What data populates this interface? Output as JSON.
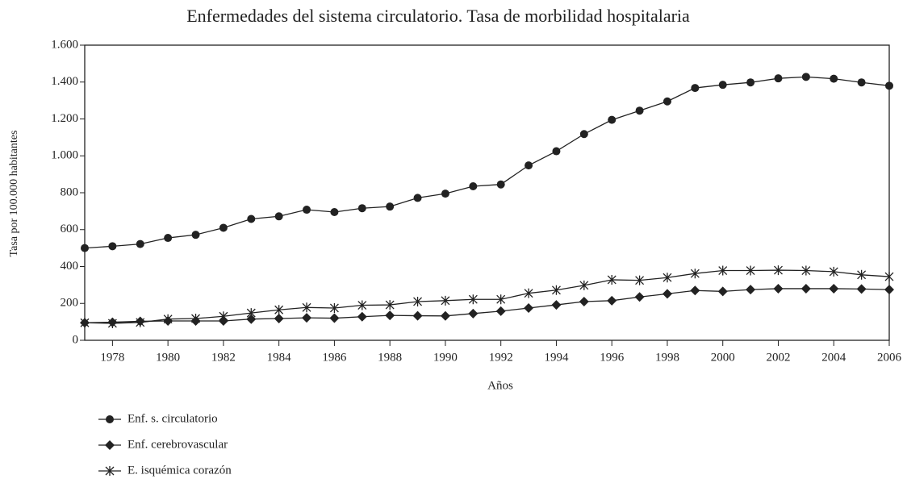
{
  "chart_data": {
    "type": "line",
    "title": "Enfermedades del sistema circulatorio. Tasa de morbilidad hospitalaria",
    "x_label": "Años",
    "y_label": "Tasa por 100.000 habitantes",
    "x": [
      1977,
      1978,
      1979,
      1980,
      1981,
      1982,
      1983,
      1984,
      1985,
      1986,
      1987,
      1988,
      1989,
      1990,
      1991,
      1992,
      1993,
      1994,
      1995,
      1996,
      1997,
      1998,
      1999,
      2000,
      2001,
      2002,
      2003,
      2004,
      2005,
      2006
    ],
    "series": [
      {
        "name": "Enf. s. circulatorio",
        "color": "#222222",
        "marker": "circle",
        "values": [
          500,
          510,
          522,
          555,
          572,
          610,
          658,
          672,
          708,
          695,
          716,
          725,
          772,
          795,
          835,
          845,
          948,
          1025,
          1118,
          1195,
          1245,
          1295,
          1368,
          1385,
          1398,
          1420,
          1428,
          1418,
          1398,
          1380
        ]
      },
      {
        "name": "Enf. cerebrovascular",
        "color": "#222222",
        "marker": "diamond",
        "values": [
          95,
          98,
          103,
          105,
          105,
          105,
          115,
          118,
          122,
          120,
          128,
          135,
          133,
          132,
          145,
          158,
          175,
          192,
          210,
          215,
          235,
          252,
          270,
          265,
          275,
          280,
          280,
          280,
          278,
          275
        ]
      },
      {
        "name": "E. isquémica corazón",
        "color": "#222222",
        "marker": "star",
        "values": [
          95,
          92,
          97,
          115,
          118,
          130,
          148,
          165,
          178,
          175,
          190,
          192,
          210,
          215,
          222,
          222,
          255,
          272,
          298,
          328,
          325,
          340,
          362,
          378,
          378,
          380,
          378,
          372,
          355,
          345
        ]
      }
    ],
    "xlim": [
      1977,
      2006
    ],
    "xticks": [
      1978,
      1980,
      1982,
      1984,
      1986,
      1988,
      1990,
      1992,
      1994,
      1996,
      1998,
      2000,
      2002,
      2004,
      2006
    ],
    "ylim": [
      0,
      1600
    ],
    "yticks": [
      0,
      200,
      400,
      600,
      800,
      {
        "value": 1000,
        "label": "1.000"
      },
      {
        "value": 1200,
        "label": "1.200"
      },
      {
        "value": 1400,
        "label": "1.400"
      },
      {
        "value": 1600,
        "label": "1.600"
      }
    ],
    "grid": false,
    "legend": "bottom-left"
  }
}
